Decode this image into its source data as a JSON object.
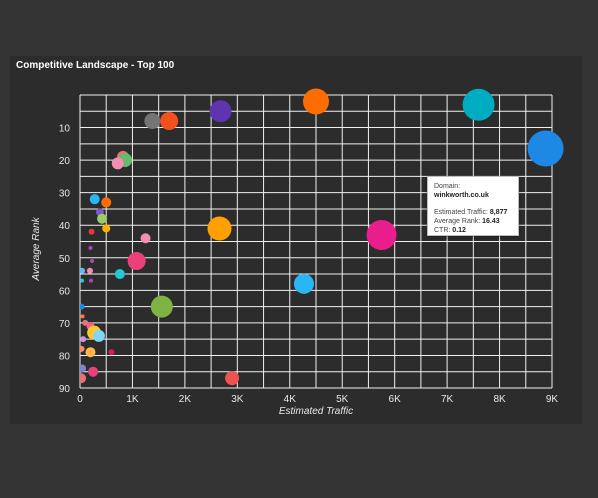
{
  "chart_data": {
    "type": "scatter",
    "title": "Competitive Landscape - Top 100",
    "xlabel": "Estimated Traffic",
    "ylabel": "Average Rank",
    "xlim": [
      0,
      9000
    ],
    "ylim": [
      90,
      0
    ],
    "x_ticks": [
      "0",
      "1K",
      "2K",
      "3K",
      "4K",
      "5K",
      "6K",
      "7K",
      "8K",
      "9K"
    ],
    "y_ticks": [
      "10",
      "20",
      "30",
      "40",
      "50",
      "60",
      "70",
      "80",
      "90"
    ],
    "grid": true,
    "points": [
      {
        "x": 4500,
        "y": 2,
        "size": 13,
        "color": "#ff6d00"
      },
      {
        "x": 7600,
        "y": 3,
        "size": 16,
        "color": "#00acc1"
      },
      {
        "x": 2680,
        "y": 5,
        "size": 11,
        "color": "#5e35b1"
      },
      {
        "x": 1380,
        "y": 8,
        "size": 8,
        "color": "#757575"
      },
      {
        "x": 1700,
        "y": 8,
        "size": 9,
        "color": "#f4511e"
      },
      {
        "x": 8877,
        "y": 16.43,
        "size": 18,
        "color": "#1e88e5",
        "label": "winkworth.co.uk",
        "ctr": 0.12
      },
      {
        "x": 820,
        "y": 19,
        "size": 6,
        "color": "#e57373"
      },
      {
        "x": 860,
        "y": 20,
        "size": 7,
        "color": "#66bb6a"
      },
      {
        "x": 720,
        "y": 21,
        "size": 6,
        "color": "#f48fb1"
      },
      {
        "x": 280,
        "y": 32,
        "size": 5,
        "color": "#29b6f6"
      },
      {
        "x": 500,
        "y": 33,
        "size": 5,
        "color": "#ff6d00"
      },
      {
        "x": 380,
        "y": 36,
        "size": 4,
        "color": "#7e57c2"
      },
      {
        "x": 420,
        "y": 38,
        "size": 5,
        "color": "#9ccc65"
      },
      {
        "x": 500,
        "y": 41,
        "size": 4,
        "color": "#ffb300"
      },
      {
        "x": 220,
        "y": 42,
        "size": 3,
        "color": "#e53935"
      },
      {
        "x": 2660,
        "y": 41,
        "size": 12,
        "color": "#ffa000"
      },
      {
        "x": 1250,
        "y": 44,
        "size": 5,
        "color": "#f48fb1"
      },
      {
        "x": 5750,
        "y": 43,
        "size": 15,
        "color": "#e91e8c"
      },
      {
        "x": 200,
        "y": 47,
        "size": 2,
        "color": "#ab47bc"
      },
      {
        "x": 1080,
        "y": 51,
        "size": 9,
        "color": "#ec407a"
      },
      {
        "x": 230,
        "y": 51,
        "size": 2,
        "color": "#ab47bc"
      },
      {
        "x": 760,
        "y": 55,
        "size": 5,
        "color": "#26c6da"
      },
      {
        "x": 40,
        "y": 54,
        "size": 3,
        "color": "#64b5f6"
      },
      {
        "x": 190,
        "y": 54,
        "size": 3,
        "color": "#f48fb1"
      },
      {
        "x": 40,
        "y": 57,
        "size": 2,
        "color": "#26c6da"
      },
      {
        "x": 210,
        "y": 57,
        "size": 2,
        "color": "#ab47bc"
      },
      {
        "x": 4270,
        "y": 58,
        "size": 10,
        "color": "#29b6f6"
      },
      {
        "x": 1560,
        "y": 65,
        "size": 11,
        "color": "#7cb342"
      },
      {
        "x": 30,
        "y": 65,
        "size": 3,
        "color": "#1e88e5"
      },
      {
        "x": 50,
        "y": 68,
        "size": 2,
        "color": "#ff7043"
      },
      {
        "x": 100,
        "y": 70,
        "size": 3,
        "color": "#e57373"
      },
      {
        "x": 200,
        "y": 71,
        "size": 4,
        "color": "#f06292"
      },
      {
        "x": 270,
        "y": 73,
        "size": 7,
        "color": "#ffca28"
      },
      {
        "x": 360,
        "y": 74,
        "size": 6,
        "color": "#81d4fa"
      },
      {
        "x": 60,
        "y": 75,
        "size": 3,
        "color": "#ce93d8"
      },
      {
        "x": 30,
        "y": 78,
        "size": 3,
        "color": "#ff8a65"
      },
      {
        "x": 200,
        "y": 79,
        "size": 5,
        "color": "#ffb74d"
      },
      {
        "x": 600,
        "y": 79,
        "size": 3,
        "color": "#d81b60"
      },
      {
        "x": 40,
        "y": 84,
        "size": 4,
        "color": "#7986cb"
      },
      {
        "x": 250,
        "y": 85,
        "size": 5,
        "color": "#ec407a"
      },
      {
        "x": 20,
        "y": 87,
        "size": 5,
        "color": "#e57373"
      },
      {
        "x": 2900,
        "y": 87,
        "size": 7,
        "color": "#ef5350"
      }
    ],
    "tooltip": {
      "domain_label": "Domain:",
      "domain_value": "winkworth.co.uk",
      "traffic_label": "Estimated Traffic:",
      "traffic_value": "8,877",
      "rank_label": "Average Rank:",
      "rank_value": "16.43",
      "ctr_label": "CTR:",
      "ctr_value": "0.12"
    }
  }
}
